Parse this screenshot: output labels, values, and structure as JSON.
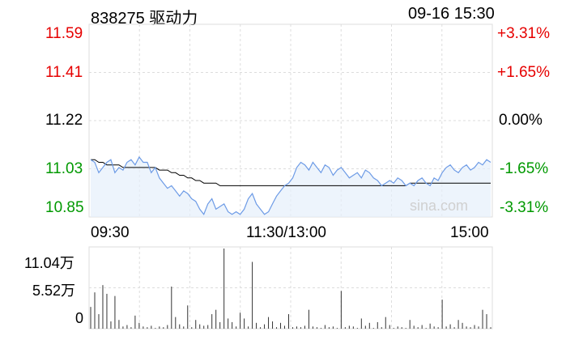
{
  "header": {
    "title": "838275 驱动力",
    "datetime": "09-16 15:30"
  },
  "watermark": "sina.com",
  "colors": {
    "up": "#e60000",
    "down": "#009900",
    "price_line": "#6d9be6",
    "avg_line": "#000000",
    "fill": "#e6effb",
    "grid": "#dddddd",
    "volume": "#333333"
  },
  "price_axis": {
    "left": [
      "11.59",
      "11.41",
      "11.22",
      "11.03",
      "10.85"
    ],
    "right": [
      "+3.31%",
      "+1.65%",
      "0.00%",
      "-1.65%",
      "-3.31%"
    ]
  },
  "time_axis": {
    "labels": [
      "09:30",
      "11:30/13:00",
      "15:00"
    ]
  },
  "volume_axis": {
    "labels": [
      "11.04万",
      "5.52万",
      "0"
    ]
  },
  "chart_data": {
    "type": "line",
    "title": "",
    "ylim": [
      10.85,
      11.59
    ],
    "prev_close": 11.22,
    "sessions": "09:30-11:30, 13:00-15:00",
    "x_ticks": [
      "09:30",
      "11:30/13:00",
      "15:00"
    ],
    "series": [
      {
        "values": [
          11.07,
          11.06,
          11.02,
          11.04,
          11.06,
          11.07,
          11.02,
          11.04,
          11.03,
          11.06,
          11.07,
          11.05,
          11.08,
          11.06,
          11.06,
          11.02,
          11.04,
          11.0,
          10.98,
          10.96,
          10.97,
          10.95,
          10.93,
          10.95,
          10.94,
          10.92,
          10.91,
          10.88,
          10.86,
          10.9,
          10.92,
          10.88,
          10.89,
          10.9,
          10.87,
          10.86,
          10.87,
          10.86,
          10.88,
          10.92,
          10.94,
          10.9,
          10.88,
          10.86,
          10.87,
          10.9,
          10.93,
          10.95,
          10.97,
          10.98,
          11.0,
          11.04,
          11.06,
          11.05,
          11.03,
          11.06,
          11.04,
          11.02,
          11.05,
          11.04,
          11.01,
          11.03,
          11.04,
          11.02,
          11.0,
          11.01,
          11.02,
          11.0,
          11.03,
          11.02,
          11.0,
          10.99,
          10.97,
          10.98,
          10.99,
          10.98,
          11.0,
          10.99,
          10.97,
          10.98,
          10.97,
          10.99,
          11.0,
          10.98,
          10.97,
          11.0,
          10.99,
          11.02,
          11.04,
          11.05,
          11.03,
          11.02,
          11.04,
          11.05,
          11.03,
          11.04,
          11.06,
          11.05,
          11.07,
          11.06
        ]
      },
      {
        "values": [
          11.07,
          11.07,
          11.06,
          11.06,
          11.05,
          11.05,
          11.05,
          11.05,
          11.04,
          11.04,
          11.04,
          11.04,
          11.04,
          11.04,
          11.04,
          11.04,
          11.04,
          11.03,
          11.03,
          11.03,
          11.02,
          11.02,
          11.01,
          11.01,
          11.0,
          11.0,
          10.99,
          10.99,
          10.98,
          10.98,
          10.98,
          10.98,
          10.97,
          10.97,
          10.97,
          10.97,
          10.97,
          10.97,
          10.97,
          10.97,
          10.97,
          10.97,
          10.97,
          10.97,
          10.97,
          10.97,
          10.97,
          10.97,
          10.97,
          10.97,
          10.97,
          10.97,
          10.97,
          10.97,
          10.97,
          10.97,
          10.97,
          10.97,
          10.97,
          10.97,
          10.97,
          10.97,
          10.97,
          10.97,
          10.97,
          10.97,
          10.97,
          10.97,
          10.97,
          10.97,
          10.97,
          10.97,
          10.97,
          10.97,
          10.97,
          10.97,
          10.97,
          10.97,
          10.97,
          10.98,
          10.98,
          10.98,
          10.98,
          10.98,
          10.98,
          10.98,
          10.98,
          10.98,
          10.98,
          10.98,
          10.98,
          10.98,
          10.98,
          10.98,
          10.98,
          10.98,
          10.98,
          10.98,
          10.98,
          10.98
        ]
      }
    ],
    "volume_ylim": [
      0,
      110400
    ],
    "volume": [
      30000,
      50000,
      20000,
      60000,
      48000,
      10000,
      45000,
      12000,
      3000,
      5000,
      2000,
      18000,
      8000,
      3000,
      2000,
      4000,
      1000,
      3000,
      2000,
      5000,
      58000,
      16000,
      6000,
      3000,
      32000,
      2000,
      12000,
      6000,
      4000,
      5000,
      20000,
      26000,
      9000,
      110400,
      14000,
      9000,
      3000,
      22000,
      14000,
      3000,
      92000,
      8000,
      2000,
      6000,
      16000,
      10000,
      2000,
      8000,
      4000,
      20000,
      2000,
      3000,
      2000,
      4000,
      26000,
      3000,
      2000,
      1000,
      5000,
      2000,
      3000,
      1000,
      52000,
      2000,
      4000,
      3000,
      1000,
      14000,
      4000,
      8000,
      1000,
      9000,
      2000,
      16000,
      5000,
      1000,
      3000,
      2000,
      1000,
      12000,
      4000,
      2000,
      5000,
      1000,
      7000,
      3000,
      2000,
      40000,
      3000,
      6000,
      2000,
      12000,
      8000,
      3000,
      2000,
      5000,
      3000,
      26000,
      20000,
      2000
    ]
  }
}
